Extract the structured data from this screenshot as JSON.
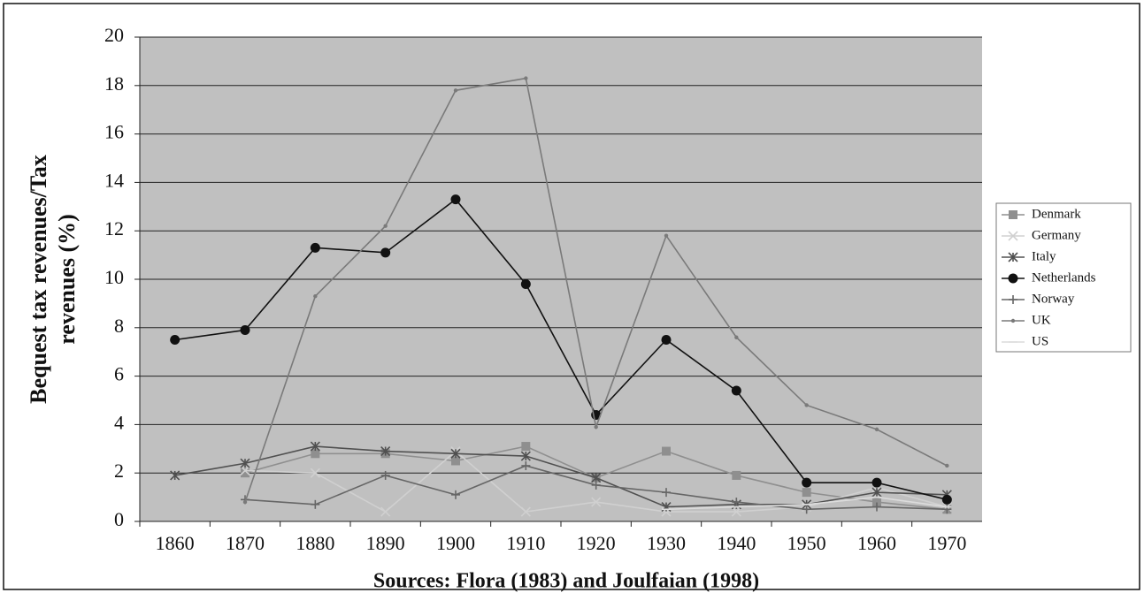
{
  "chart_data": {
    "type": "line",
    "ylabel": [
      "Bequest tax revenues/Tax",
      "revenues (%)"
    ],
    "caption": "Sources: Flora (1983) and Joulfaian (1998)",
    "categories": [
      "1860",
      "1870",
      "1880",
      "1890",
      "1900",
      "1910",
      "1920",
      "1930",
      "1940",
      "1950",
      "1960",
      "1970"
    ],
    "ylim": [
      0,
      20
    ],
    "yticks": [
      0,
      2,
      4,
      6,
      8,
      10,
      12,
      14,
      16,
      18,
      20
    ],
    "grid": true,
    "legend": "right",
    "series": [
      {
        "name": "Denmark",
        "color": "#8f8f8f",
        "marker": "square",
        "values": [
          null,
          2.0,
          2.8,
          2.8,
          2.5,
          3.1,
          1.8,
          2.9,
          1.9,
          1.2,
          0.8,
          0.5
        ]
      },
      {
        "name": "Germany",
        "color": "#d0d0d0",
        "marker": "x",
        "values": [
          null,
          2.1,
          2.0,
          0.4,
          2.9,
          0.4,
          0.8,
          0.4,
          0.4,
          0.6,
          1.4,
          0.6
        ]
      },
      {
        "name": "Italy",
        "color": "#505050",
        "marker": "asterisk",
        "values": [
          1.9,
          2.4,
          3.1,
          2.9,
          2.8,
          2.7,
          1.8,
          0.6,
          0.7,
          0.7,
          1.2,
          1.1
        ]
      },
      {
        "name": "Netherlands",
        "color": "#111111",
        "marker": "circle",
        "values": [
          7.5,
          7.9,
          11.3,
          11.1,
          13.3,
          9.8,
          4.4,
          7.5,
          5.4,
          1.6,
          1.6,
          0.9
        ]
      },
      {
        "name": "Norway",
        "color": "#666666",
        "marker": "plus",
        "values": [
          null,
          0.9,
          0.7,
          1.9,
          1.1,
          2.3,
          1.5,
          1.2,
          0.8,
          0.5,
          0.6,
          0.5
        ]
      },
      {
        "name": "UK",
        "color": "#7a7a7a",
        "marker": "dot",
        "values": [
          null,
          0.8,
          9.3,
          12.2,
          17.8,
          18.3,
          3.9,
          11.8,
          7.6,
          4.8,
          3.8,
          2.3
        ]
      },
      {
        "name": "US",
        "color": "#dcdcdc",
        "marker": "dash",
        "values": [
          null,
          null,
          null,
          null,
          null,
          null,
          null,
          0.5,
          0.6,
          0.7,
          1.0,
          0.6
        ]
      }
    ]
  }
}
